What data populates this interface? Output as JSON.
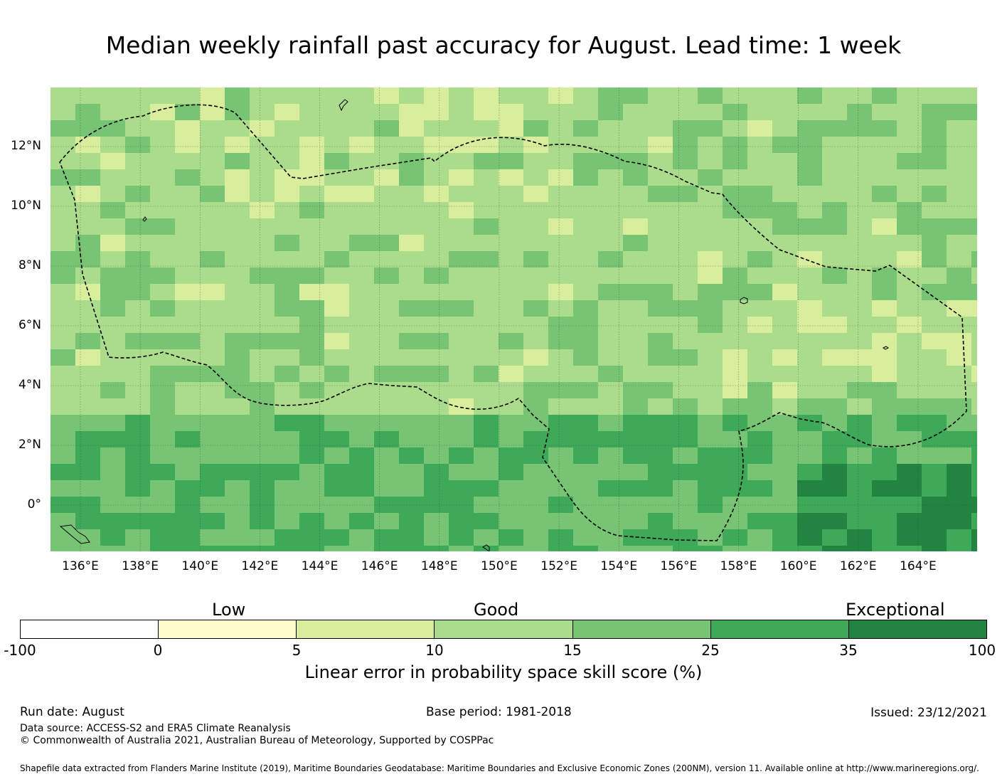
{
  "title": "Median weekly rainfall past accuracy for August. Lead time: 1 week",
  "map": {
    "lon_labels": [
      "136°E",
      "138°E",
      "140°E",
      "142°E",
      "144°E",
      "146°E",
      "148°E",
      "150°E",
      "152°E",
      "154°E",
      "156°E",
      "158°E",
      "160°E",
      "162°E",
      "164°E"
    ],
    "lat_labels": [
      "12°N",
      "10°N",
      "8°N",
      "6°N",
      "4°N",
      "2°N",
      "0°"
    ]
  },
  "legend": {
    "categories": [
      "Low",
      "Good",
      "Exceptional"
    ],
    "ticks": [
      "-100",
      "0",
      "5",
      "10",
      "15",
      "25",
      "35",
      "100"
    ],
    "colors": [
      "#ffffff",
      "#fffccb",
      "#d8ee9c",
      "#abdc8c",
      "#77c474",
      "#3fa95a",
      "#238442"
    ],
    "title": "Linear error in probability space skill score (%)"
  },
  "footer": {
    "run_date": "Run date: August",
    "base_period": "Base period: 1981-2018",
    "issued": "Issued: 23/12/2021",
    "data_source": "Data source: ACCESS-S2 and ERA5 Climate Reanalysis",
    "copyright": "© Commonwealth of Australia 2021, Australian Bureau of Meteorology, Supported by COSPPac",
    "shapefile": "Shapefile data extracted from Flanders Marine Institute (2019), Maritime Boundaries Geodatabase: Maritime Boundaries and Exclusive Economic Zones (200NM), version 11. Available online at http://www.marineregions.org/."
  }
}
